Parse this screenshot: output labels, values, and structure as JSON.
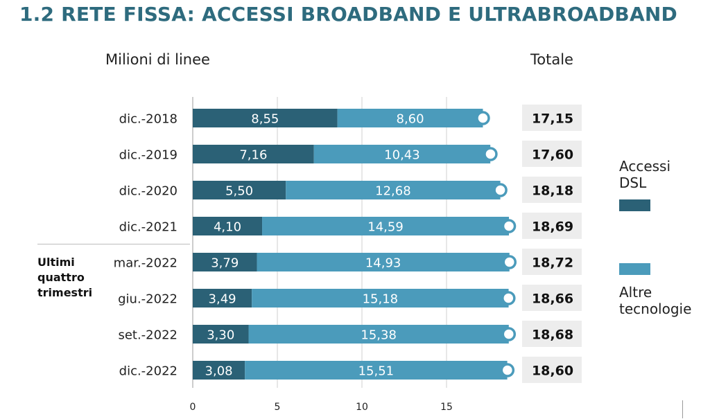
{
  "page": {
    "title": "1.2 RETE FISSA: ACCESSI BROADBAND E ULTRABROADBAND",
    "units_label": "Milioni di linee",
    "total_header": "Totale",
    "group_label": "Ultimi quattro trimestri"
  },
  "colors": {
    "title": "#2e6b7e",
    "dsl": "#2b6176",
    "other": "#4b9bbb",
    "total_box": "#ededed",
    "grid": "#cfcfcf"
  },
  "chart_data": {
    "type": "bar",
    "orientation": "horizontal",
    "stacked": true,
    "categories": [
      "dic.-2018",
      "dic.-2019",
      "dic.-2020",
      "dic.-2021",
      "mar.-2022",
      "giu.-2022",
      "set.-2022",
      "dic.-2022"
    ],
    "series": [
      {
        "name": "Accessi DSL",
        "values": [
          8.55,
          7.16,
          5.5,
          4.1,
          3.79,
          3.49,
          3.3,
          3.08
        ],
        "labels": [
          "8,55",
          "7,16",
          "5,50",
          "4,10",
          "3,79",
          "3,49",
          "3,30",
          "3,08"
        ]
      },
      {
        "name": "Altre tecnologie",
        "values": [
          8.6,
          10.43,
          12.68,
          14.59,
          14.93,
          15.18,
          15.38,
          15.51
        ],
        "labels": [
          "8,60",
          "10,43",
          "12,68",
          "14,59",
          "14,93",
          "15,18",
          "15,38",
          "15,51"
        ]
      }
    ],
    "totals": {
      "values": [
        17.15,
        17.6,
        18.18,
        18.69,
        18.72,
        18.66,
        18.68,
        18.6
      ],
      "labels": [
        "17,15",
        "17,60",
        "18,18",
        "18,69",
        "18,72",
        "18,66",
        "18,68",
        "18,60"
      ]
    },
    "xlim": [
      0,
      19
    ],
    "xticks": [
      0,
      5,
      10,
      15
    ],
    "xtick_labels": [
      "0",
      "5",
      "10",
      "15"
    ],
    "grid": true,
    "legend_position": "right",
    "xlabel": "",
    "ylabel": ""
  }
}
